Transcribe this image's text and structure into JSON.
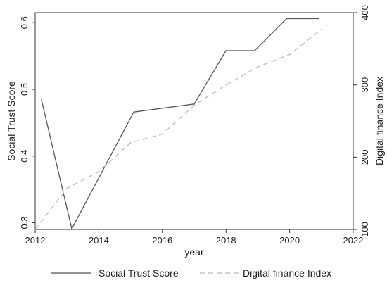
{
  "chart_data": {
    "type": "line",
    "title": "",
    "xlabel": "year",
    "ylabel": "Social Trust Score",
    "y2label": "Digital finance Index",
    "xlim": [
      2012,
      2022
    ],
    "xticks": [
      "2012",
      "2014",
      "2016",
      "2018",
      "2020",
      "2022"
    ],
    "ylim": [
      0.29,
      0.615
    ],
    "yticks": [
      "0.3",
      "0.4",
      "0.5",
      "0.6"
    ],
    "y2lim": [
      100,
      400
    ],
    "y2ticks": [
      "100",
      "200",
      "300",
      "400"
    ],
    "grid": false,
    "legend_position": "bottom",
    "series": [
      {
        "name": "Social Trust Score",
        "axis": "left",
        "style": "solid",
        "color": "#555555",
        "x": [
          2012.2,
          2013.15,
          2015.1,
          2017.0,
          2018.0,
          2018.9,
          2019.9,
          2020.9
        ],
        "values": [
          0.484,
          0.291,
          0.466,
          0.478,
          0.558,
          0.558,
          0.606,
          0.606
        ]
      },
      {
        "name": "Digital finance Index",
        "axis": "right",
        "style": "dashed",
        "color": "#bbbbbb",
        "x": [
          2012.0,
          2013.0,
          2014.0,
          2015.0,
          2016.0,
          2017.0,
          2018.0,
          2019.0,
          2020.0,
          2021.0
        ],
        "values": [
          100,
          157,
          180,
          220,
          232,
          272,
          300,
          325,
          342,
          377
        ]
      }
    ]
  }
}
